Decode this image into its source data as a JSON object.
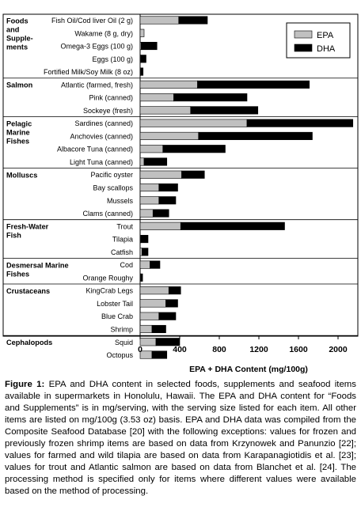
{
  "chart_data": {
    "type": "bar",
    "orientation": "horizontal",
    "stacked": true,
    "xlabel": "EPA + DHA Content (mg/100g)",
    "xlim": [
      0,
      2200
    ],
    "xticks": [
      0,
      400,
      800,
      1200,
      1600,
      2000
    ],
    "legend": {
      "placement": "top-right",
      "entries": [
        "EPA",
        "DHA"
      ]
    },
    "series": [
      {
        "name": "EPA",
        "color": "#c0c0c0"
      },
      {
        "name": "DHA",
        "color": "#000000"
      }
    ],
    "groups": [
      {
        "name": "Foods and Supple- ments",
        "label_lines": [
          "Foods",
          "and",
          "Supple-",
          "ments"
        ],
        "items": [
          {
            "label": "Fish Oil/Cod liver Oil (2 g)",
            "epa": 390,
            "dha": 290
          },
          {
            "label": "Wakame (8 g, dry)",
            "epa": 40,
            "dha": 0
          },
          {
            "label": "Omega-3 Eggs (100 g)",
            "epa": 10,
            "dha": 160
          },
          {
            "label": "Eggs (100 g)",
            "epa": 5,
            "dha": 55
          },
          {
            "label": "Fortified Milk/Soy Milk (8 oz)",
            "epa": 5,
            "dha": 25
          }
        ]
      },
      {
        "name": "Salmon",
        "label_lines": [
          "Salmon"
        ],
        "items": [
          {
            "label": "Atlantic (farmed, fresh)",
            "epa": 580,
            "dha": 1130
          },
          {
            "label": "Pink (canned)",
            "epa": 340,
            "dha": 740
          },
          {
            "label": "Sockeye (fresh)",
            "epa": 510,
            "dha": 680
          }
        ]
      },
      {
        "name": "Pelagic Marine Fishes",
        "label_lines": [
          "Pelagic",
          "Marine",
          "Fishes"
        ],
        "items": [
          {
            "label": "Sardines (canned)",
            "epa": 1080,
            "dha": 1070
          },
          {
            "label": "Anchovies (canned)",
            "epa": 590,
            "dha": 1150
          },
          {
            "label": "Albacore Tuna (canned)",
            "epa": 230,
            "dha": 630
          },
          {
            "label": "Light Tuna (canned)",
            "epa": 40,
            "dha": 230
          }
        ]
      },
      {
        "name": "Molluscs",
        "label_lines": [
          "Molluscs"
        ],
        "items": [
          {
            "label": "Pacific oyster",
            "epa": 420,
            "dha": 230
          },
          {
            "label": "Bay scallops",
            "epa": 190,
            "dha": 190
          },
          {
            "label": "Mussels",
            "epa": 190,
            "dha": 170
          },
          {
            "label": "Clams (canned)",
            "epa": 130,
            "dha": 160
          }
        ]
      },
      {
        "name": "Fresh-Water Fish",
        "label_lines": [
          "Fresh-Water",
          "Fish"
        ],
        "items": [
          {
            "label": "Trout",
            "epa": 410,
            "dha": 1050
          },
          {
            "label": "Tilapia",
            "epa": 5,
            "dha": 75
          },
          {
            "label": "Catfish",
            "epa": 20,
            "dha": 60
          }
        ]
      },
      {
        "name": "Desmersal Marine Fishes",
        "label_lines": [
          "Desmersal Marine",
          "Fishes"
        ],
        "items": [
          {
            "label": "Cod",
            "epa": 100,
            "dha": 100
          },
          {
            "label": "Orange Roughy",
            "epa": 5,
            "dha": 20
          }
        ]
      },
      {
        "name": "Crustaceans",
        "label_lines": [
          "Crustaceans"
        ],
        "items": [
          {
            "label": "KingCrab Legs",
            "epa": 290,
            "dha": 120
          },
          {
            "label": "Lobster Tail",
            "epa": 260,
            "dha": 120
          },
          {
            "label": "Blue Crab",
            "epa": 190,
            "dha": 170
          },
          {
            "label": "Shrimp",
            "epa": 120,
            "dha": 140
          }
        ]
      },
      {
        "name": "Cephalopods",
        "label_lines": [
          "Cephalopods"
        ],
        "items": [
          {
            "label": "Squid",
            "epa": 160,
            "dha": 240
          },
          {
            "label": "Octopus",
            "epa": 120,
            "dha": 150
          }
        ]
      }
    ]
  },
  "caption": {
    "label": "Figure 1:",
    "text": "EPA and DHA content in selected foods, supplements and seafood items available in supermarkets in Honolulu, Hawaii. The EPA and DHA content for “Foods and Supplements” is in mg/serving, with the serving size listed for each item. All other items are listed on mg/100g (3.53 oz) basis. EPA and DHA data was compiled from the Composite Seafood Database [20] with the following exceptions: values for frozen and previously frozen shrimp items are based on data from Krzynowek and Panunzio [22]; values for farmed and wild tilapia are based on data from Karapanagiotidis et al. [23]; values for trout and Atlantic salmon are based on data from Blanchet et al. [24]. The processing method is specified only for items where different values were available based on the method of processing."
  }
}
